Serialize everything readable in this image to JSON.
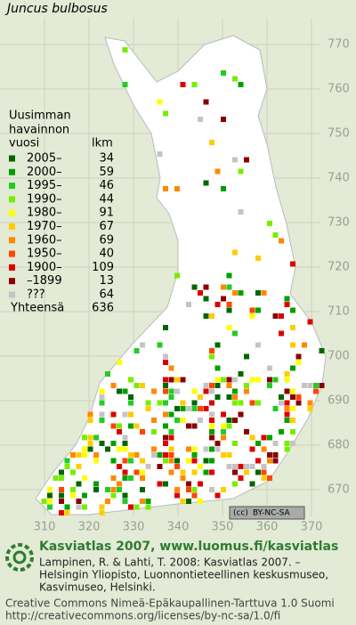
{
  "title": "Juncus bulbosus",
  "legend": {
    "heading": [
      "Uusimman",
      "havainnon",
      "vuosi"
    ],
    "count_heading": "lkm",
    "rows": [
      {
        "label": "2005–",
        "count": 34,
        "color": "#006600"
      },
      {
        "label": "2000–",
        "count": 59,
        "color": "#00a000"
      },
      {
        "label": "1995–",
        "count": 46,
        "color": "#22cc22"
      },
      {
        "label": "1990–",
        "count": 44,
        "color": "#77ee00"
      },
      {
        "label": "1980–",
        "count": 91,
        "color": "#ffff00"
      },
      {
        "label": "1970–",
        "count": 67,
        "color": "#ffcc00"
      },
      {
        "label": "1960–",
        "count": 69,
        "color": "#ff8800"
      },
      {
        "label": "1950–",
        "count": 40,
        "color": "#ff4400"
      },
      {
        "label": "1900–",
        "count": 109,
        "color": "#dd0000"
      },
      {
        "label": "–1899",
        "count": 13,
        "color": "#880000"
      },
      {
        "label": "???",
        "count": 64,
        "color": "#c4c4c4"
      }
    ],
    "total_label": "Yhteensä",
    "total": 636
  },
  "axes": {
    "y_labels": [
      770,
      760,
      750,
      740,
      730,
      720,
      710,
      700,
      690,
      680,
      670
    ],
    "x_labels": [
      310,
      320,
      330,
      340,
      350,
      360,
      370
    ]
  },
  "badge": {
    "cc": "(cc)",
    "license": "BY-NC-SA"
  },
  "footer": {
    "title": "Kasviatlas 2007, www.luomus.fi/kasviatlas",
    "citation": [
      "Lampinen, R. & Lahti, T. 2008: Kasviatlas 2007. –",
      "Helsingin Yliopisto, Luonnontieteellinen keskusmuseo,",
      "Kasvimuseo, Helsinki."
    ],
    "license": [
      "Creative Commons Nimeä-Epäkaupallinen-Tarttuva 1.0 Suomi",
      "http://creativecommons.org/licenses/by-nc-sa/1.0/fi"
    ]
  }
}
